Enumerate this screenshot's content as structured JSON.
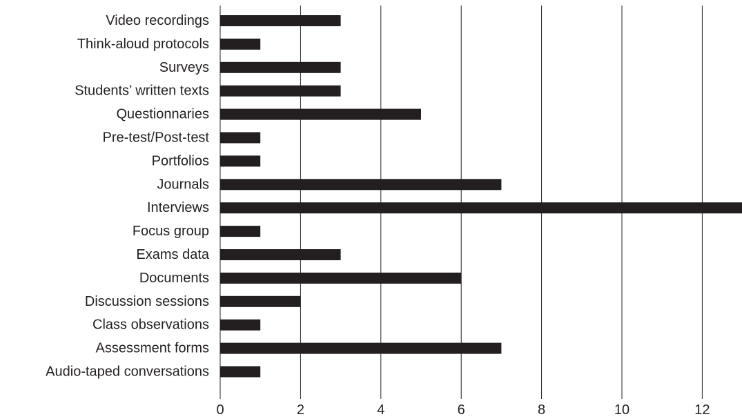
{
  "chart_data": {
    "type": "bar",
    "orientation": "horizontal",
    "categories": [
      "Video recordings",
      "Think-aloud protocols",
      "Surveys",
      "Students’ written texts",
      "Questionnaries",
      "Pre-test/Post-test",
      "Portfolios",
      "Journals",
      "Interviews",
      "Focus group",
      "Exams data",
      "Documents",
      "Discussion sessions",
      "Class observations",
      "Assessment forms",
      "Audio-taped conversations"
    ],
    "values": [
      3,
      1,
      3,
      3,
      5,
      1,
      1,
      7,
      13,
      1,
      3,
      6,
      2,
      1,
      7,
      1
    ],
    "xlim": [
      0,
      13
    ],
    "xticks": [
      "0",
      "2",
      "4",
      "6",
      "8",
      "10",
      "12"
    ],
    "grid": "vertical",
    "bar_color": "#231f20",
    "title": "",
    "xlabel": "",
    "ylabel": ""
  }
}
